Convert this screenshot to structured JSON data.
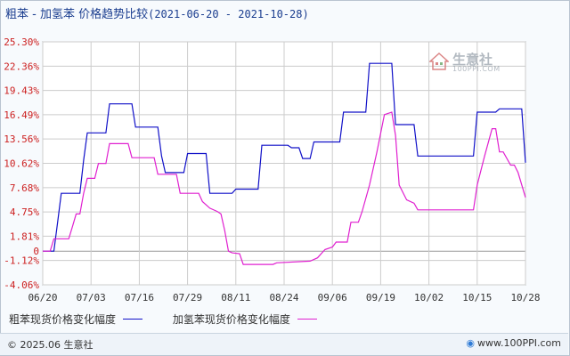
{
  "header": {
    "title": "粗苯 - 加氢苯 价格趋势比较",
    "date_range": "(2021-06-20 - 2021-10-28)"
  },
  "watermark": {
    "name": "生意社",
    "url": "100PPI.COM",
    "logo_icon": "house-logo-icon"
  },
  "footer": {
    "copyright": "© 2025.06 生意社",
    "site": "www.100PPI.com",
    "site_icon": "globe-icon"
  },
  "colors": {
    "series1": "#1010c8",
    "series2": "#e020d0",
    "grid": "#cccccc",
    "zero_line": "#999999",
    "axis_text": "#cc2020"
  },
  "chart_data": {
    "type": "line",
    "xlim": [
      0,
      130
    ],
    "ylim": [
      -4.06,
      25.3
    ],
    "y_ticks": [
      "25.30%",
      "22.36%",
      "19.43%",
      "16.49%",
      "13.56%",
      "10.62%",
      "7.68%",
      "4.75%",
      "1.81%",
      "0",
      "-1.12%",
      "-4.06%"
    ],
    "y_tick_values": [
      25.3,
      22.36,
      19.43,
      16.49,
      13.56,
      10.62,
      7.68,
      4.75,
      1.81,
      0,
      -1.12,
      -4.06
    ],
    "x_ticks": [
      "06/20",
      "07/03",
      "07/16",
      "07/29",
      "08/11",
      "08/24",
      "09/06",
      "09/19",
      "10/02",
      "10/15",
      "10/28"
    ],
    "x_tick_values": [
      0,
      13,
      26,
      39,
      52,
      65,
      78,
      91,
      104,
      117,
      130
    ],
    "grid": true,
    "legend_position": "bottom-left",
    "series": [
      {
        "name": "粗苯现货价格变化幅度",
        "points": [
          [
            0,
            0
          ],
          [
            3,
            0
          ],
          [
            4,
            3.5
          ],
          [
            5,
            7
          ],
          [
            10,
            7
          ],
          [
            11,
            11
          ],
          [
            12,
            14.3
          ],
          [
            17,
            14.3
          ],
          [
            18,
            17.8
          ],
          [
            24,
            17.8
          ],
          [
            25,
            15
          ],
          [
            31,
            15
          ],
          [
            32,
            11.5
          ],
          [
            33,
            9.5
          ],
          [
            38,
            9.5
          ],
          [
            39,
            11.8
          ],
          [
            44,
            11.8
          ],
          [
            45,
            7
          ],
          [
            51,
            7
          ],
          [
            52,
            7.5
          ],
          [
            58,
            7.5
          ],
          [
            59,
            12.8
          ],
          [
            66,
            12.8
          ],
          [
            67,
            12.5
          ],
          [
            69,
            12.5
          ],
          [
            70,
            11.2
          ],
          [
            72,
            11.2
          ],
          [
            73,
            13.2
          ],
          [
            80,
            13.2
          ],
          [
            81,
            16.8
          ],
          [
            87,
            16.8
          ],
          [
            88,
            22.7
          ],
          [
            94,
            22.7
          ],
          [
            95,
            15.3
          ],
          [
            100,
            15.3
          ],
          [
            101,
            11.5
          ],
          [
            116,
            11.5
          ],
          [
            117,
            16.8
          ],
          [
            122,
            16.8
          ],
          [
            123,
            17.2
          ],
          [
            129,
            17.2
          ],
          [
            130,
            10.7
          ]
        ]
      },
      {
        "name": "加氢苯现货价格变化幅度",
        "points": [
          [
            0,
            0
          ],
          [
            2,
            0
          ],
          [
            3,
            1.5
          ],
          [
            7,
            1.5
          ],
          [
            8,
            3
          ],
          [
            9,
            4.5
          ],
          [
            10,
            4.5
          ],
          [
            11,
            7
          ],
          [
            12,
            8.8
          ],
          [
            14,
            8.8
          ],
          [
            15,
            10.6
          ],
          [
            17,
            10.6
          ],
          [
            18,
            13
          ],
          [
            23,
            13
          ],
          [
            24,
            11.3
          ],
          [
            30,
            11.3
          ],
          [
            31,
            9.3
          ],
          [
            36,
            9.3
          ],
          [
            37,
            7
          ],
          [
            42,
            7
          ],
          [
            43,
            6
          ],
          [
            45,
            5.2
          ],
          [
            47,
            4.8
          ],
          [
            48,
            4.5
          ],
          [
            49,
            2.5
          ],
          [
            50,
            0
          ],
          [
            51,
            -0.2
          ],
          [
            53,
            -0.3
          ],
          [
            54,
            -1.6
          ],
          [
            62,
            -1.6
          ],
          [
            63,
            -1.4
          ],
          [
            72,
            -1.2
          ],
          [
            74,
            -0.8
          ],
          [
            76,
            0.2
          ],
          [
            78,
            0.5
          ],
          [
            79,
            1.1
          ],
          [
            82,
            1.1
          ],
          [
            83,
            3.5
          ],
          [
            85,
            3.5
          ],
          [
            86,
            4.8
          ],
          [
            88,
            8
          ],
          [
            90,
            12
          ],
          [
            92,
            16.5
          ],
          [
            94,
            16.8
          ],
          [
            95,
            14
          ],
          [
            96,
            8
          ],
          [
            98,
            6.2
          ],
          [
            100,
            5.8
          ],
          [
            101,
            5
          ],
          [
            116,
            5
          ],
          [
            117,
            8
          ],
          [
            119,
            11.5
          ],
          [
            121,
            14.8
          ],
          [
            122,
            14.8
          ],
          [
            123,
            12
          ],
          [
            124,
            12
          ],
          [
            126,
            10.4
          ],
          [
            127,
            10.4
          ],
          [
            128,
            9.5
          ],
          [
            130,
            6.5
          ]
        ]
      }
    ]
  }
}
